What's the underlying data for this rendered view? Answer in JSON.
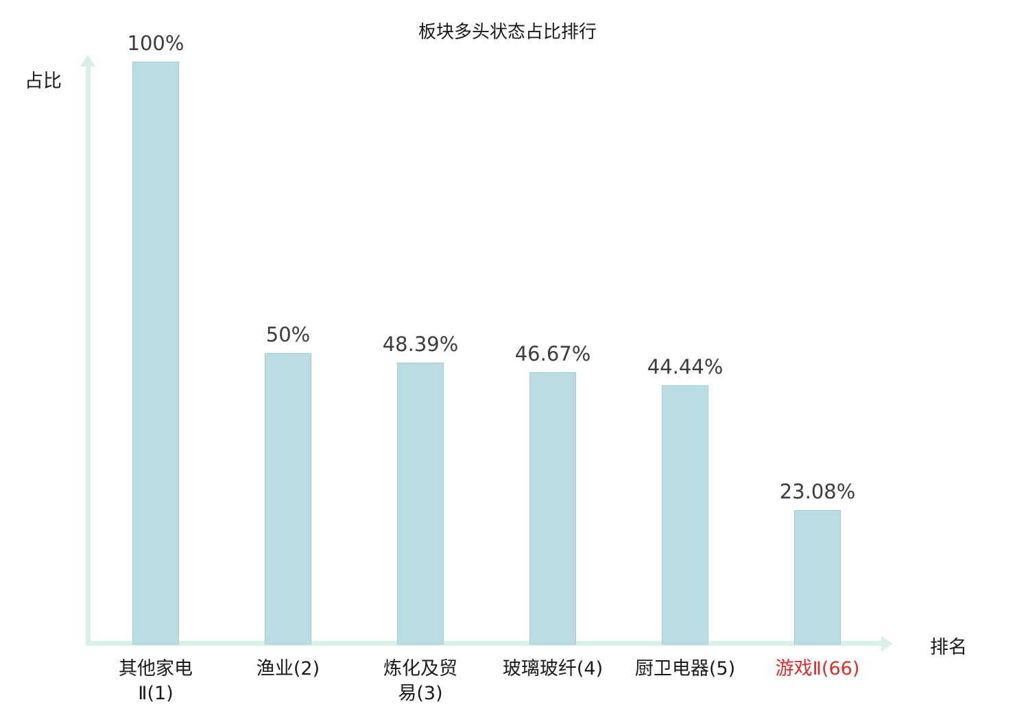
{
  "chart": {
    "title": "板块多头状态占比排行",
    "y_axis_label": "占比",
    "x_axis_label": "排名"
  },
  "chart_data": {
    "type": "bar",
    "title": "板块多头状态占比排行",
    "xlabel": "排名",
    "ylabel": "占比",
    "ylim": [
      0,
      100
    ],
    "grid": false,
    "legend": "none",
    "categories": [
      "其他家电Ⅱ(1)",
      "渔业(2)",
      "炼化及贸易(3)",
      "玻璃玻纤(4)",
      "厨卫电器(5)",
      "游戏Ⅱ(66)"
    ],
    "values": [
      100,
      50,
      48.39,
      46.67,
      44.44,
      23.08
    ],
    "value_labels": [
      "100%",
      "50%",
      "48.39%",
      "46.67%",
      "44.44%",
      "23.08%"
    ],
    "category_label_lines": [
      [
        "其他家电",
        "Ⅱ(1)"
      ],
      [
        "渔业(2)"
      ],
      [
        "炼化及贸",
        "易(3)"
      ],
      [
        "玻璃玻纤(4)"
      ],
      [
        "厨卫电器(5)"
      ],
      [
        "游戏Ⅱ(66)"
      ]
    ],
    "highlight_index": 5,
    "colors": {
      "bar_fill": "#b9dde2",
      "bar_border": "#a3ccd3",
      "axis": "#d9efe9",
      "label": "#3c3c3c",
      "category": "#1a1a1a",
      "highlight": "#e02b2b",
      "bg": "#ffffff"
    }
  }
}
